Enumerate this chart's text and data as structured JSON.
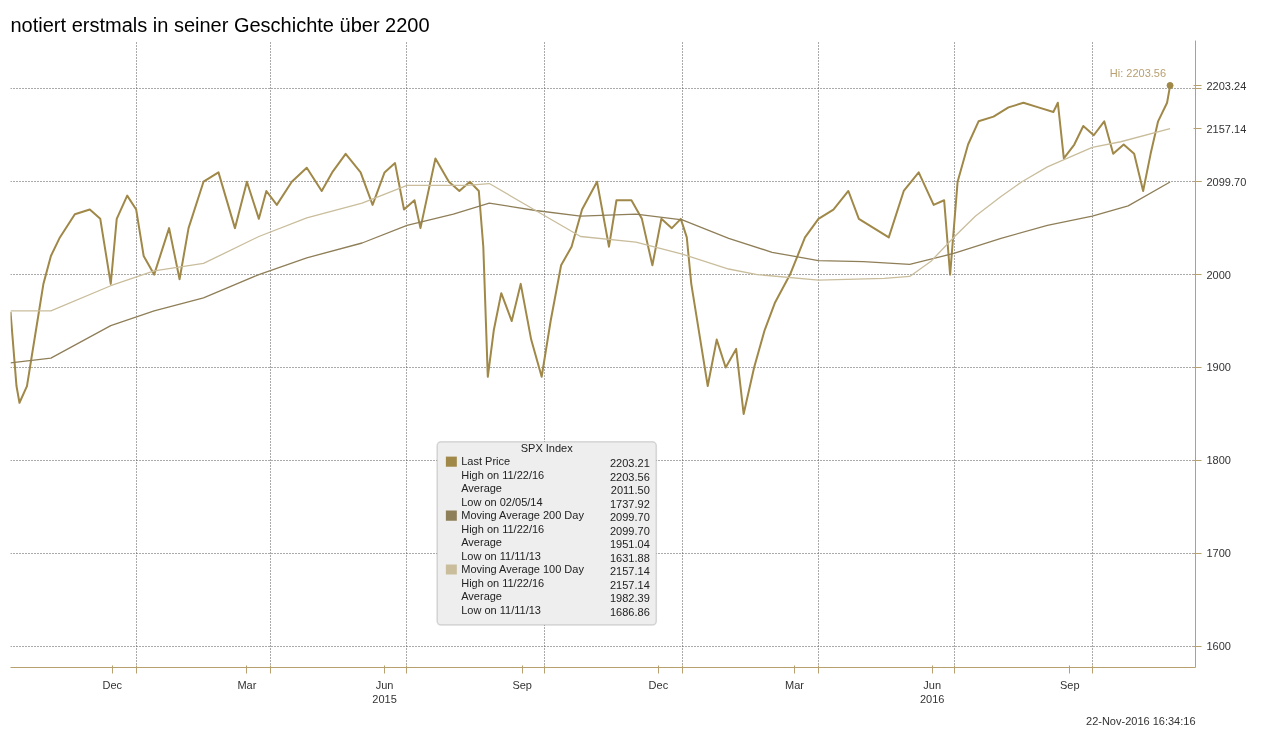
{
  "chart_data": {
    "type": "line",
    "title": "notiert erstmals in seiner Geschichte über 2200",
    "legend_title": "SPX Index",
    "legend": "bottom",
    "grid": true,
    "marker": "none",
    "xlim": [
      "2014-10-09",
      "2016-12-09"
    ],
    "ylim": [
      1577,
      2252
    ],
    "xticks": [
      {
        "value": "2014-12-16",
        "label": "Dec"
      },
      {
        "value": "2015-01-01",
        "label": null
      },
      {
        "value": "2015-03-16",
        "label": "Mar"
      },
      {
        "value": "2015-04-01",
        "label": null
      },
      {
        "value": "2015-06-16",
        "label": "Jun\n2015"
      },
      {
        "value": "2015-07-01",
        "label": null
      },
      {
        "value": "2015-09-16",
        "label": "Sep"
      },
      {
        "value": "2015-10-01",
        "label": null
      },
      {
        "value": "2015-12-16",
        "label": "Dec"
      },
      {
        "value": "2016-01-01",
        "label": null
      },
      {
        "value": "2016-03-16",
        "label": "Mar"
      },
      {
        "value": "2016-04-01",
        "label": null
      },
      {
        "value": "2016-06-16",
        "label": "Jun\n2016"
      },
      {
        "value": "2016-07-01",
        "label": null
      },
      {
        "value": "2016-09-16",
        "label": "Sep"
      },
      {
        "value": "2016-10-01",
        "label": null
      }
    ],
    "yticks": [
      1600,
      1700,
      1800,
      1900,
      2000,
      {
        "value": 2099.7,
        "label": "2099.70"
      },
      {
        "value": 2100,
        "label": null
      },
      {
        "value": 2157.14,
        "label": "2157.14"
      },
      {
        "value": 2200,
        "label": null
      },
      {
        "value": 2203.24,
        "label": "2203.24"
      }
    ],
    "annotations": [
      "2203.21",
      "High on 11/22/16 2203.56",
      "Average 2011.50",
      "Low on 02/05/14 1737.92",
      "2099.70",
      "High on 11/22/16 2099.70",
      "Average 1951.04",
      "Low on 11/11/13 1631.88",
      "2157.14",
      "High on 11/22/16 2157.14",
      "Average 1982.39",
      "Low on 11/11/13 1686.86",
      "22-Nov-2016 16:34:16",
      {
        "text": "Hi: 2203.56",
        "x": "2016-11-22",
        "y": 2203.56
      }
    ],
    "series": [
      {
        "name": "Last Price",
        "color": "#a08848",
        "x": [
          "2014-10-09",
          "2014-10-13",
          "2014-10-15",
          "2014-10-20",
          "2014-10-27",
          "2014-10-31",
          "2014-11-05",
          "2014-11-11",
          "2014-11-21",
          "2014-12-01",
          "2014-12-08",
          "2014-12-15",
          "2014-12-19",
          "2014-12-26",
          "2015-01-01",
          "2015-01-06",
          "2015-01-13",
          "2015-01-23",
          "2015-01-30",
          "2015-02-05",
          "2015-02-15",
          "2015-02-25",
          "2015-03-08",
          "2015-03-16",
          "2015-03-24",
          "2015-03-29",
          "2015-04-05",
          "2015-04-15",
          "2015-04-25",
          "2015-05-05",
          "2015-05-12",
          "2015-05-21",
          "2015-05-31",
          "2015-06-08",
          "2015-06-16",
          "2015-06-23",
          "2015-06-29",
          "2015-07-06",
          "2015-07-10",
          "2015-07-20",
          "2015-07-29",
          "2015-08-05",
          "2015-08-12",
          "2015-08-18",
          "2015-08-21",
          "2015-08-24",
          "2015-08-28",
          "2015-09-02",
          "2015-09-09",
          "2015-09-15",
          "2015-09-22",
          "2015-09-29",
          "2015-10-05",
          "2015-10-12",
          "2015-10-19",
          "2015-10-26",
          "2015-11-05",
          "2015-11-13",
          "2015-11-18",
          "2015-11-28",
          "2015-12-05",
          "2015-12-12",
          "2015-12-18",
          "2015-12-25",
          "2015-12-31",
          "2016-01-04",
          "2016-01-07",
          "2016-01-14",
          "2016-01-18",
          "2016-01-24",
          "2016-01-30",
          "2016-02-06",
          "2016-02-11",
          "2016-02-18",
          "2016-02-25",
          "2016-03-03",
          "2016-03-13",
          "2016-03-23",
          "2016-04-01",
          "2016-04-11",
          "2016-04-21",
          "2016-04-28",
          "2016-05-08",
          "2016-05-18",
          "2016-05-28",
          "2016-06-07",
          "2016-06-17",
          "2016-06-24",
          "2016-06-28",
          "2016-07-03",
          "2016-07-10",
          "2016-07-17",
          "2016-07-27",
          "2016-08-06",
          "2016-08-16",
          "2016-08-26",
          "2016-09-05",
          "2016-09-08",
          "2016-09-12",
          "2016-09-19",
          "2016-09-25",
          "2016-10-02",
          "2016-10-09",
          "2016-10-15",
          "2016-10-22",
          "2016-10-29",
          "2016-11-04",
          "2016-11-09",
          "2016-11-14",
          "2016-11-20",
          "2016-11-22"
        ],
        "values": [
          1960,
          1880,
          1862,
          1880,
          1950,
          1990,
          2020,
          2040,
          2065,
          2070,
          2060,
          1990,
          2060,
          2085,
          2070,
          2020,
          2000,
          2050,
          1995,
          2050,
          2100,
          2110,
          2050,
          2100,
          2060,
          2090,
          2075,
          2100,
          2115,
          2090,
          2110,
          2130,
          2110,
          2075,
          2110,
          2120,
          2070,
          2080,
          2050,
          2125,
          2100,
          2090,
          2100,
          2090,
          2030,
          1890,
          1940,
          1980,
          1950,
          1990,
          1930,
          1890,
          1950,
          2010,
          2030,
          2070,
          2100,
          2030,
          2080,
          2080,
          2060,
          2010,
          2060,
          2050,
          2060,
          2040,
          1990,
          1920,
          1880,
          1930,
          1900,
          1920,
          1850,
          1900,
          1940,
          1970,
          2000,
          2040,
          2060,
          2070,
          2090,
          2060,
          2050,
          2040,
          2090,
          2110,
          2075,
          2080,
          2000,
          2100,
          2140,
          2165,
          2170,
          2180,
          2185,
          2180,
          2175,
          2185,
          2125,
          2140,
          2160,
          2150,
          2165,
          2130,
          2140,
          2130,
          2090,
          2130,
          2165,
          2185,
          2203.21
        ]
      },
      {
        "name": "Moving Average 200 Day",
        "color": "#8f7f58",
        "x": [
          "2014-10-09",
          "2014-11-05",
          "2014-12-15",
          "2015-01-13",
          "2015-02-15",
          "2015-03-24",
          "2015-04-25",
          "2015-06-01",
          "2015-07-01",
          "2015-08-01",
          "2015-08-25",
          "2015-09-25",
          "2015-10-25",
          "2015-12-01",
          "2016-01-01",
          "2016-02-01",
          "2016-03-01",
          "2016-04-01",
          "2016-05-01",
          "2016-06-01",
          "2016-07-01",
          "2016-08-01",
          "2016-09-01",
          "2016-10-01",
          "2016-10-25",
          "2016-11-22"
        ],
        "values": [
          1905,
          1910,
          1945,
          1961,
          1975,
          2000,
          2018,
          2034,
          2053,
          2065,
          2077,
          2069,
          2063,
          2065,
          2059,
          2039,
          2024,
          2015,
          2014,
          2011,
          2023,
          2039,
          2053,
          2063,
          2074,
          2099.7
        ]
      },
      {
        "name": "Moving Average 100 Day",
        "color": "#c9bd9c",
        "x": [
          "2014-10-09",
          "2014-11-05",
          "2014-12-15",
          "2015-01-13",
          "2015-02-15",
          "2015-03-24",
          "2015-04-25",
          "2015-06-01",
          "2015-07-01",
          "2015-08-10",
          "2015-08-25",
          "2015-09-25",
          "2015-10-25",
          "2015-12-01",
          "2016-01-01",
          "2016-02-01",
          "2016-02-20",
          "2016-04-01",
          "2016-05-15",
          "2016-06-01",
          "2016-06-15",
          "2016-07-01",
          "2016-07-15",
          "2016-08-01",
          "2016-08-15",
          "2016-09-01",
          "2016-10-01",
          "2016-10-20",
          "2016-11-22"
        ],
        "values": [
          1961,
          1961,
          1988,
          2004,
          2012,
          2041,
          2061,
          2077,
          2096,
          2096,
          2098,
          2069,
          2041,
          2035,
          2022,
          2006,
          2000,
          1994,
          1996,
          1998,
          2014,
          2041,
          2063,
          2084,
          2100,
          2116,
          2137,
          2143,
          2157.14
        ]
      }
    ]
  }
}
